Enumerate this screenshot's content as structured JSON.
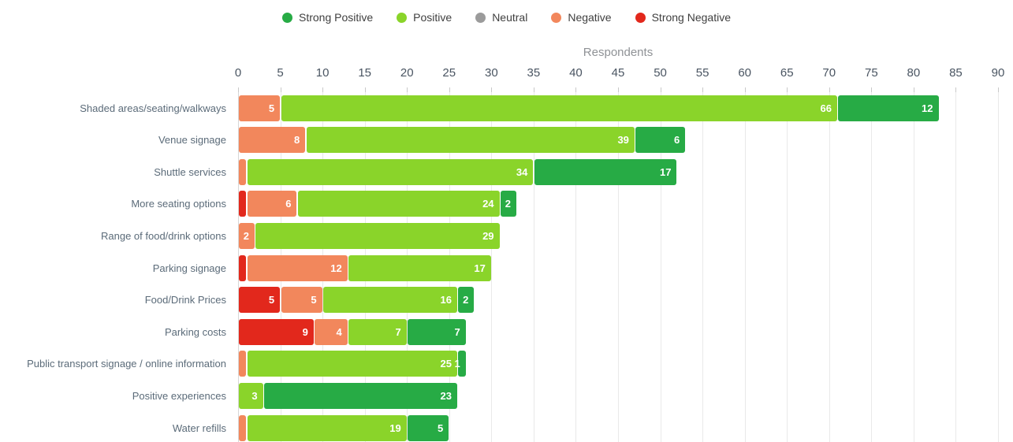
{
  "legend": {
    "items": [
      {
        "label": "Strong Positive",
        "color": "#27ab45"
      },
      {
        "label": "Positive",
        "color": "#8ad42a"
      },
      {
        "label": "Neutral",
        "color": "#9b9b9b"
      },
      {
        "label": "Negative",
        "color": "#f2875c"
      },
      {
        "label": "Strong Negative",
        "color": "#e2281c"
      }
    ]
  },
  "chart_data": {
    "type": "bar",
    "orientation": "horizontal",
    "stacked": true,
    "title": "",
    "xlabel": "Respondents",
    "ylabel": "",
    "xlim": [
      0,
      90
    ],
    "xticks": [
      0,
      5,
      10,
      15,
      20,
      25,
      30,
      35,
      40,
      45,
      50,
      55,
      60,
      65,
      70,
      75,
      80,
      85,
      90
    ],
    "grid": true,
    "legend_position": "top",
    "categories": [
      "Shaded areas/seating/walkways",
      "Venue signage",
      "Shuttle services",
      "More seating options",
      "Range of food/drink options",
      "Parking signage",
      "Food/Drink Prices",
      "Parking costs",
      "Public transport signage / online information",
      "Positive experiences",
      "Water refills"
    ],
    "series": [
      {
        "name": "Strong Negative",
        "color": "#e2281c",
        "values": [
          0,
          0,
          0,
          1,
          0,
          1,
          5,
          9,
          0,
          0,
          0
        ],
        "labels": [
          "",
          "",
          "",
          "",
          "",
          "",
          "5",
          "9",
          "",
          "",
          ""
        ]
      },
      {
        "name": "Negative",
        "color": "#f2875c",
        "values": [
          5,
          8,
          1,
          6,
          2,
          12,
          5,
          4,
          1,
          0,
          1
        ],
        "labels": [
          "5",
          "8",
          "",
          "6",
          "2",
          "12",
          "5",
          "4",
          "",
          "",
          ""
        ]
      },
      {
        "name": "Neutral",
        "color": "#9b9b9b",
        "values": [
          0,
          0,
          0,
          0,
          0,
          0,
          0,
          0,
          0,
          0,
          0
        ],
        "labels": [
          "",
          "",
          "",
          "",
          "",
          "",
          "",
          "",
          "",
          "",
          ""
        ]
      },
      {
        "name": "Positive",
        "color": "#8ad42a",
        "values": [
          66,
          39,
          34,
          24,
          29,
          17,
          16,
          7,
          25,
          3,
          19
        ],
        "labels": [
          "66",
          "39",
          "34",
          "24",
          "29",
          "17",
          "16",
          "7",
          "25",
          "3",
          "19"
        ]
      },
      {
        "name": "Strong Positive",
        "color": "#27ab45",
        "values": [
          12,
          6,
          17,
          2,
          0,
          0,
          2,
          7,
          1,
          23,
          5
        ],
        "labels": [
          "12",
          "6",
          "17",
          "2",
          "",
          "",
          "2",
          "7",
          "1",
          "23",
          "5"
        ]
      }
    ]
  }
}
